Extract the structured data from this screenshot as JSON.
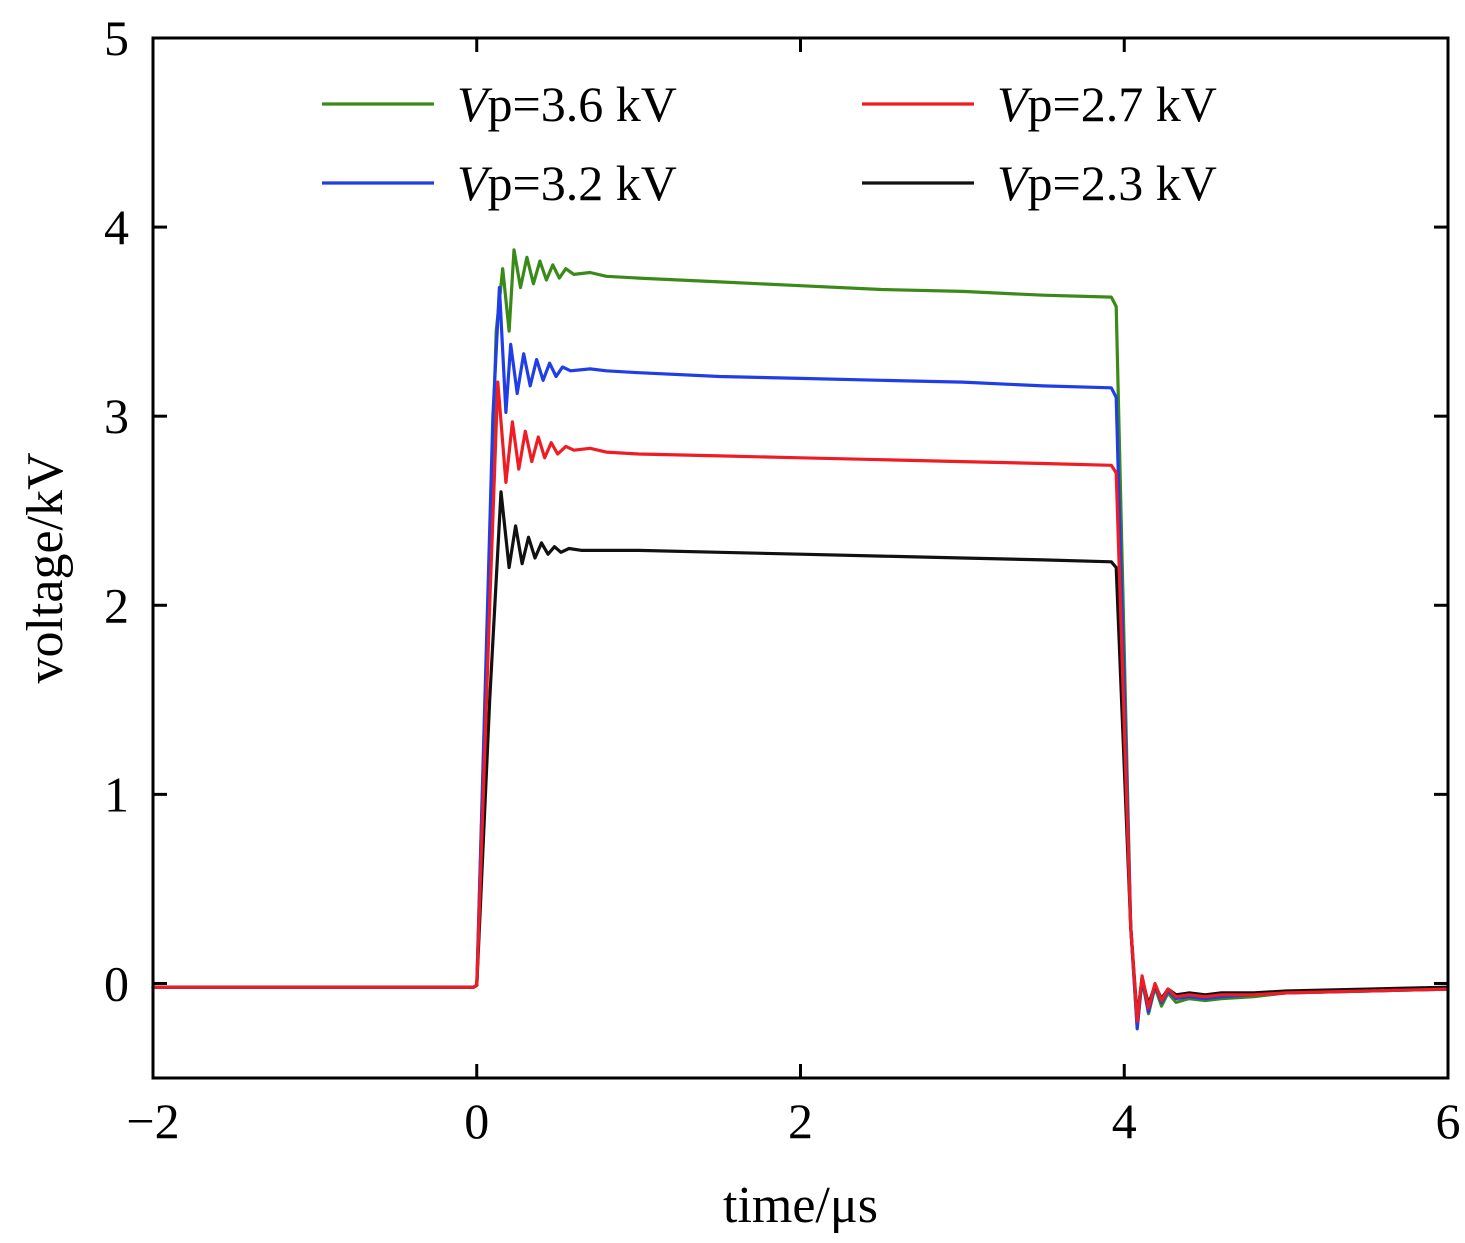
{
  "chart_data": {
    "type": "line",
    "xlabel": "time/μs",
    "ylabel": "voltage/kV",
    "xlim": [
      -2,
      6
    ],
    "ylim": [
      -0.5,
      5
    ],
    "xticks": [
      -2,
      0,
      2,
      4,
      6
    ],
    "yticks": [
      0,
      1,
      2,
      3,
      4,
      5
    ],
    "xtick_labels": [
      "−2",
      "0",
      "2",
      "4",
      "6"
    ],
    "ytick_labels": [
      "0",
      "1",
      "2",
      "3",
      "4",
      "5"
    ],
    "grid": false,
    "legend_position": "top",
    "series": [
      {
        "name_prefix": "V",
        "name": "p=3.6 kV",
        "color": "#3a8a1a",
        "x": [
          -2.0,
          -0.02,
          0.0,
          0.12,
          0.16,
          0.2,
          0.23,
          0.27,
          0.31,
          0.35,
          0.39,
          0.43,
          0.47,
          0.51,
          0.55,
          0.6,
          0.7,
          0.8,
          1.0,
          1.5,
          2.0,
          2.5,
          3.0,
          3.5,
          3.92,
          3.95,
          4.04,
          4.08,
          4.11,
          4.15,
          4.19,
          4.23,
          4.27,
          4.32,
          4.4,
          4.5,
          4.6,
          4.8,
          5.0,
          5.5,
          6.0
        ],
        "y": [
          -0.02,
          -0.02,
          -0.01,
          3.45,
          3.78,
          3.45,
          3.88,
          3.68,
          3.84,
          3.7,
          3.82,
          3.72,
          3.8,
          3.73,
          3.78,
          3.75,
          3.76,
          3.74,
          3.73,
          3.71,
          3.69,
          3.67,
          3.66,
          3.64,
          3.63,
          3.58,
          0.3,
          -0.23,
          0.02,
          -0.16,
          -0.02,
          -0.12,
          -0.05,
          -0.1,
          -0.08,
          -0.09,
          -0.08,
          -0.07,
          -0.05,
          -0.04,
          -0.03
        ]
      },
      {
        "name_prefix": "V",
        "name": "p=3.2 kV",
        "color": "#1f3ee8",
        "x": [
          -2.0,
          -0.02,
          0.0,
          0.1,
          0.14,
          0.18,
          0.21,
          0.25,
          0.29,
          0.33,
          0.37,
          0.41,
          0.45,
          0.49,
          0.53,
          0.58,
          0.7,
          0.8,
          1.0,
          1.5,
          2.0,
          2.5,
          3.0,
          3.5,
          3.92,
          3.95,
          4.04,
          4.08,
          4.11,
          4.15,
          4.19,
          4.23,
          4.27,
          4.32,
          4.4,
          4.5,
          4.6,
          4.8,
          5.0,
          5.5,
          6.0
        ],
        "y": [
          -0.02,
          -0.02,
          -0.01,
          3.0,
          3.68,
          3.02,
          3.38,
          3.12,
          3.33,
          3.16,
          3.3,
          3.19,
          3.28,
          3.21,
          3.26,
          3.24,
          3.25,
          3.24,
          3.23,
          3.21,
          3.2,
          3.19,
          3.18,
          3.16,
          3.15,
          3.1,
          0.3,
          -0.24,
          0.03,
          -0.15,
          -0.01,
          -0.1,
          -0.04,
          -0.08,
          -0.07,
          -0.08,
          -0.07,
          -0.06,
          -0.05,
          -0.04,
          -0.03
        ]
      },
      {
        "name_prefix": "V",
        "name": "p=2.7 kV",
        "color": "#ef1c24",
        "x": [
          -2.0,
          -0.02,
          0.0,
          0.08,
          0.13,
          0.18,
          0.22,
          0.26,
          0.3,
          0.34,
          0.38,
          0.42,
          0.46,
          0.5,
          0.55,
          0.6,
          0.7,
          0.8,
          1.0,
          1.5,
          2.0,
          2.5,
          3.0,
          3.5,
          3.92,
          3.95,
          4.04,
          4.08,
          4.11,
          4.15,
          4.19,
          4.23,
          4.27,
          4.32,
          4.4,
          4.5,
          4.6,
          4.8,
          5.0,
          5.5,
          6.0
        ],
        "y": [
          -0.02,
          -0.02,
          -0.01,
          2.0,
          3.18,
          2.65,
          2.97,
          2.72,
          2.92,
          2.76,
          2.89,
          2.78,
          2.86,
          2.8,
          2.84,
          2.82,
          2.83,
          2.81,
          2.8,
          2.79,
          2.78,
          2.77,
          2.76,
          2.75,
          2.74,
          2.7,
          0.3,
          -0.2,
          0.04,
          -0.13,
          0.0,
          -0.09,
          -0.03,
          -0.07,
          -0.06,
          -0.07,
          -0.06,
          -0.06,
          -0.05,
          -0.04,
          -0.03
        ]
      },
      {
        "name_prefix": "V",
        "name": "p=2.3 kV",
        "color": "#111111",
        "x": [
          -2.0,
          -0.02,
          0.0,
          0.08,
          0.15,
          0.2,
          0.24,
          0.28,
          0.32,
          0.36,
          0.4,
          0.44,
          0.48,
          0.52,
          0.57,
          0.65,
          0.8,
          1.0,
          1.5,
          2.0,
          2.5,
          3.0,
          3.5,
          3.92,
          3.95,
          4.04,
          4.08,
          4.11,
          4.15,
          4.19,
          4.23,
          4.27,
          4.32,
          4.4,
          4.5,
          4.6,
          4.8,
          5.0,
          5.5,
          6.0
        ],
        "y": [
          -0.02,
          -0.02,
          -0.01,
          1.5,
          2.6,
          2.2,
          2.42,
          2.22,
          2.36,
          2.25,
          2.33,
          2.27,
          2.31,
          2.28,
          2.3,
          2.29,
          2.29,
          2.29,
          2.28,
          2.27,
          2.26,
          2.25,
          2.24,
          2.23,
          2.2,
          0.3,
          -0.18,
          0.03,
          -0.11,
          -0.01,
          -0.08,
          -0.03,
          -0.06,
          -0.05,
          -0.06,
          -0.05,
          -0.05,
          -0.04,
          -0.03,
          -0.02
        ]
      }
    ],
    "draw_order": [
      0,
      1,
      3,
      2
    ]
  }
}
